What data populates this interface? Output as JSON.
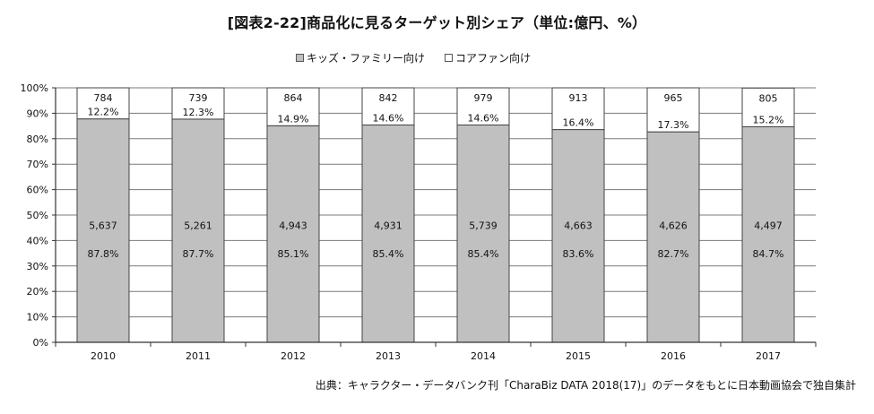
{
  "chart_data": {
    "type": "bar",
    "stacked": true,
    "title": "[図表2-22]商品化に見るターゲット別シェア（単位:億円、%）",
    "categories": [
      "2010",
      "2011",
      "2012",
      "2013",
      "2014",
      "2015",
      "2016",
      "2017"
    ],
    "series": [
      {
        "name": "キッズ・ファミリー向け",
        "color": "#c0c0c0",
        "amounts": [
          "5,637",
          "5,261",
          "4,943",
          "4,931",
          "5,739",
          "4,663",
          "4,626",
          "4,497"
        ],
        "percent_labels": [
          "87.8%",
          "87.7%",
          "85.1%",
          "85.4%",
          "85.4%",
          "83.6%",
          "82.7%",
          "84.7%"
        ],
        "values": [
          87.8,
          87.7,
          85.1,
          85.4,
          85.4,
          83.6,
          82.7,
          84.7
        ]
      },
      {
        "name": "コアファン向け",
        "color": "#ffffff",
        "amounts": [
          "784",
          "739",
          "864",
          "842",
          "979",
          "913",
          "965",
          "805"
        ],
        "percent_labels": [
          "12.2%",
          "12.3%",
          "14.9%",
          "14.6%",
          "14.6%",
          "16.4%",
          "17.3%",
          "15.2%"
        ],
        "values": [
          12.2,
          12.3,
          14.9,
          14.6,
          14.6,
          16.4,
          17.3,
          15.2
        ]
      }
    ],
    "yticks": [
      "0%",
      "10%",
      "20%",
      "30%",
      "40%",
      "50%",
      "60%",
      "70%",
      "80%",
      "90%",
      "100%"
    ],
    "ylim": [
      0,
      100
    ],
    "grid": true,
    "legend_position": "top-center",
    "source": "出典：キャラクター・データバンク刊「CharaBiz DATA 2018(17)」のデータをもとに日本動画協会で独自集計"
  }
}
